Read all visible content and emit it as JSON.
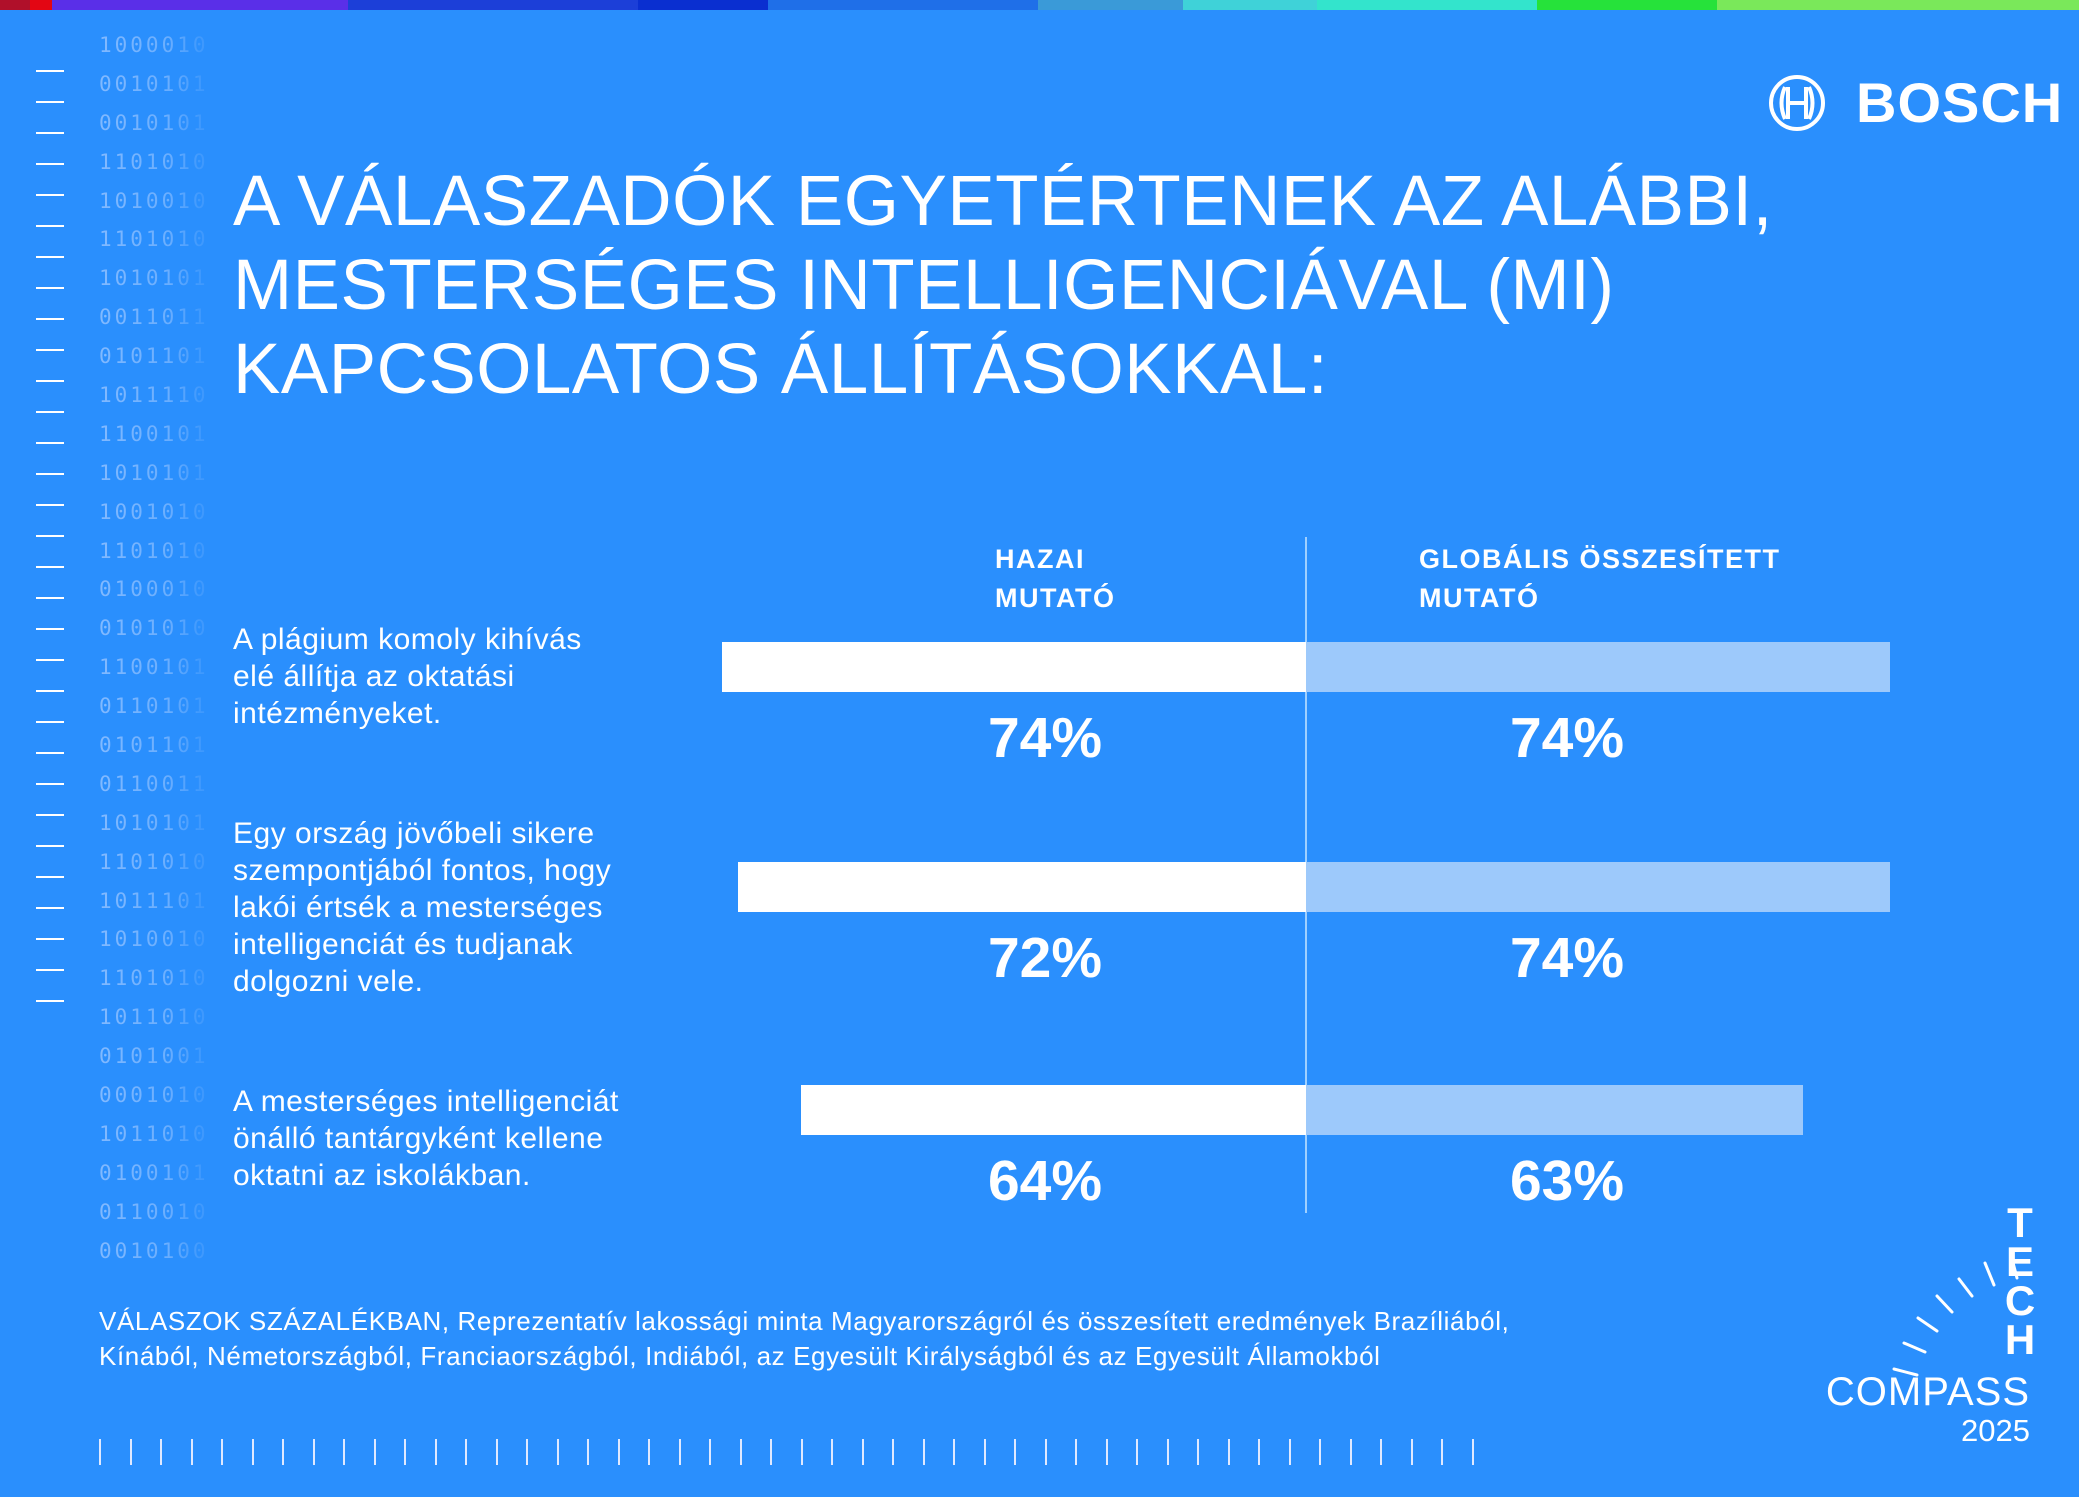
{
  "colors": {
    "background": "#2a8ffd",
    "home_bar": "#ffffff",
    "global_bar": "#9dc9fb",
    "topbar": [
      "#b0102a",
      "#e30613",
      "#5a2fe8",
      "#1c3fd8",
      "#0a2fd0",
      "#1f6fe8",
      "#3a9ad8",
      "#3fd2d8",
      "#33e4cc",
      "#26e23a",
      "#7ae85a"
    ]
  },
  "binary_rows": [
    "1000010",
    "0010101",
    "0010101",
    "1101010",
    "1010010",
    "1101010",
    "1010101",
    "0011011",
    "0101101",
    "1011110",
    "1100101",
    "1010101",
    "1001010",
    "1101010",
    "0100010",
    "0101010",
    "1100101",
    "0110101",
    "0101101",
    "0110011",
    "1010101",
    "1101010",
    "1011101",
    "1010010",
    "1101010",
    "1011010",
    "0101001",
    "0001010",
    "1011010",
    "0100101",
    "0110010",
    "0010100"
  ],
  "logo": {
    "brand": "BOSCH"
  },
  "title": {
    "lines": [
      "A VÁLASZADÓK EGYETÉRTENEK AZ ALÁBBI,",
      "MESTERSÉGES INTELLIGENCIÁVAL (MI)",
      "KAPCSOLATOS ÁLLÍTÁSOKKAL:"
    ]
  },
  "chart_data": {
    "type": "bar",
    "orientation": "horizontal-diverging",
    "title": "A VÁLASZADÓK EGYETÉRTENEK AZ ALÁBBI, MESTERSÉGES INTELLIGENCIÁVAL (MI) KAPCSOLATOS ÁLLÍTÁSOKKAL:",
    "unit": "%",
    "xlim": [
      0,
      100
    ],
    "column_headers": {
      "home": [
        "HAZAI",
        "MUTATÓ"
      ],
      "global": [
        "GLOBÁLIS ÖSSZESÍTETT",
        "MUTATÓ"
      ]
    },
    "categories": [
      [
        "A plágium komoly kihívás",
        "elé állítja az oktatási",
        "intézményeket."
      ],
      [
        "Egy ország jövőbeli sikere",
        "szempontjából fontos, hogy",
        "lakói értsék a mesterséges",
        "intelligenciát és tudjanak",
        "dolgozni vele."
      ],
      [
        "A mesterséges intelligenciát",
        "önálló tantárgyként kellene",
        "oktatni az iskolákban."
      ]
    ],
    "series": [
      {
        "name": "HAZAI MUTATÓ",
        "values": [
          74,
          72,
          64
        ],
        "labels": [
          "74%",
          "72%",
          "64%"
        ]
      },
      {
        "name": "GLOBÁLIS ÖSSZESÍTETT MUTATÓ",
        "values": [
          74,
          74,
          63
        ],
        "labels": [
          "74%",
          "74%",
          "63%"
        ]
      }
    ]
  },
  "footnote": {
    "lines": [
      "VÁLASZOK SZÁZALÉKBAN, Reprezentatív lakossági minta Magyarországról és összesített eredmények Brazíliából,",
      "Kínából, Németországból, Franciaországból, Indiából, az Egyesült Királyságból és az Egyesült Államokból"
    ]
  },
  "tech_compass": {
    "letters": [
      "T",
      "E",
      "C",
      "H"
    ],
    "word": "COMPASS",
    "year": "2025"
  }
}
